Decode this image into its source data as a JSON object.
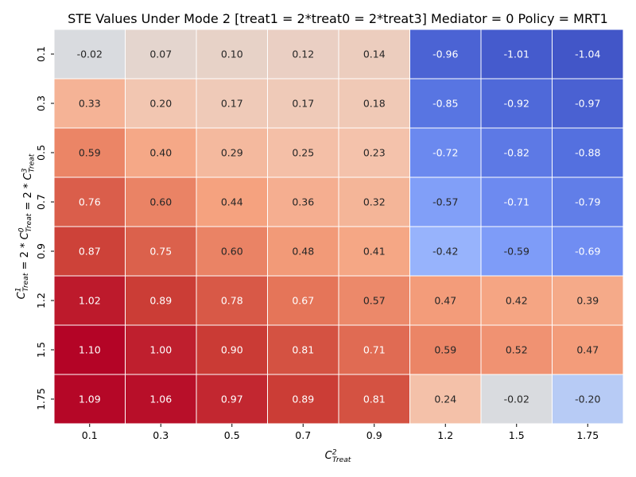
{
  "chart_data": {
    "type": "heatmap",
    "title": "STE Values Under Mode 2 [treat1 = 2*treat0 = 2*treat3] Mediator = 0 Policy = MRT1",
    "xlabel": {
      "base": "C",
      "sup": "2",
      "sub": "Treat"
    },
    "ylabel": [
      {
        "t": "C",
        "sup": "1",
        "sub": "Treat"
      },
      {
        "t": " = 2 * "
      },
      {
        "t": "C",
        "sup": "0",
        "sub": "Treat"
      },
      {
        "t": " = 2 * "
      },
      {
        "t": "C",
        "sup": "3",
        "sub": "Treat"
      }
    ],
    "x_categories": [
      "0.1",
      "0.3",
      "0.5",
      "0.7",
      "0.9",
      "1.2",
      "1.5",
      "1.75"
    ],
    "y_categories": [
      "0.1",
      "0.3",
      "0.5",
      "0.7",
      "0.9",
      "1.2",
      "1.5",
      "1.75"
    ],
    "values": [
      [
        -0.02,
        0.07,
        0.1,
        0.12,
        0.14,
        -0.96,
        -1.01,
        -1.04
      ],
      [
        0.33,
        0.2,
        0.17,
        0.17,
        0.18,
        -0.85,
        -0.92,
        -0.97
      ],
      [
        0.59,
        0.4,
        0.29,
        0.25,
        0.23,
        -0.72,
        -0.82,
        -0.88
      ],
      [
        0.76,
        0.6,
        0.44,
        0.36,
        0.32,
        -0.57,
        -0.71,
        -0.79
      ],
      [
        0.87,
        0.75,
        0.6,
        0.48,
        0.41,
        -0.42,
        -0.59,
        -0.69
      ],
      [
        1.02,
        0.89,
        0.78,
        0.67,
        0.57,
        0.47,
        0.42,
        0.39
      ],
      [
        1.1,
        1.0,
        0.9,
        0.81,
        0.71,
        0.59,
        0.52,
        0.47
      ],
      [
        1.09,
        1.06,
        0.97,
        0.89,
        0.81,
        0.24,
        -0.02,
        -0.2
      ]
    ],
    "colormap": "coolwarm",
    "color_center": 0,
    "value_range": [
      -1.1,
      1.1
    ],
    "colorbar": false,
    "cell_borders": "#ffffff"
  }
}
